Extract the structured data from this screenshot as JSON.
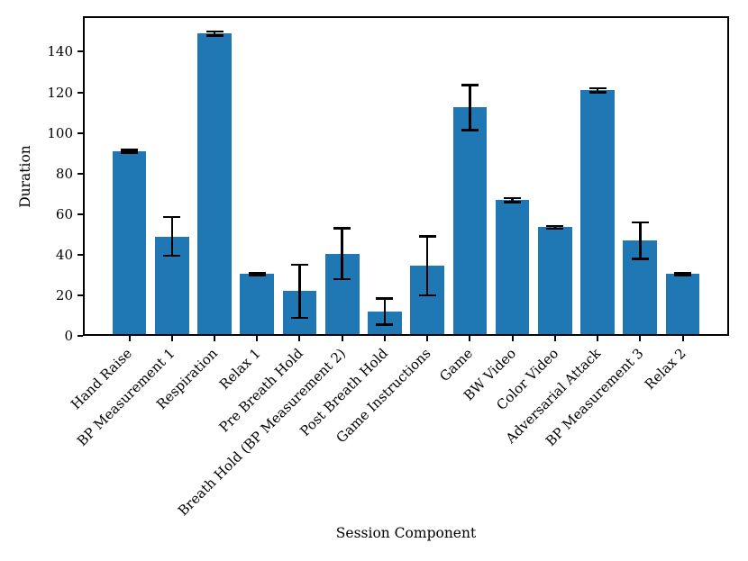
{
  "figure": {
    "background": "#ffffff",
    "text_color": "#000000"
  },
  "chart_data": {
    "type": "bar",
    "title": "",
    "xlabel": "Session Component",
    "ylabel": "Duration",
    "categories": [
      "Hand Raise",
      "BP Measurement 1",
      "Respiration",
      "Relax 1",
      "Pre Breath Hold",
      "Breath Hold (BP Measurement 2)",
      "Post Breath Hold",
      "Game Instructions",
      "Game",
      "BW Video",
      "Color Video",
      "Adversarial Attack",
      "BP Measurement 3",
      "Relax 2"
    ],
    "series": [
      {
        "name": "Duration",
        "values": [
          91,
          49,
          149,
          30.5,
          22,
          40.5,
          12,
          34.5,
          112.5,
          67,
          53.5,
          121,
          47,
          30.5
        ],
        "errors": [
          0.7,
          9.5,
          1,
          0.5,
          13,
          12.5,
          6.5,
          14.5,
          11,
          1,
          0.7,
          1,
          9,
          0.5
        ]
      }
    ],
    "ylim": [
      0,
      157.5
    ],
    "xlim": [
      -1.09,
      14.09
    ],
    "yticks": [
      0,
      20,
      40,
      60,
      80,
      100,
      120,
      140
    ],
    "bar_width_fraction": 0.8,
    "grid": false,
    "legend": null,
    "bar_color": "#1f77b4",
    "error_color": "#000000",
    "error_cap_width": 19,
    "error_line_width": 2.5
  }
}
